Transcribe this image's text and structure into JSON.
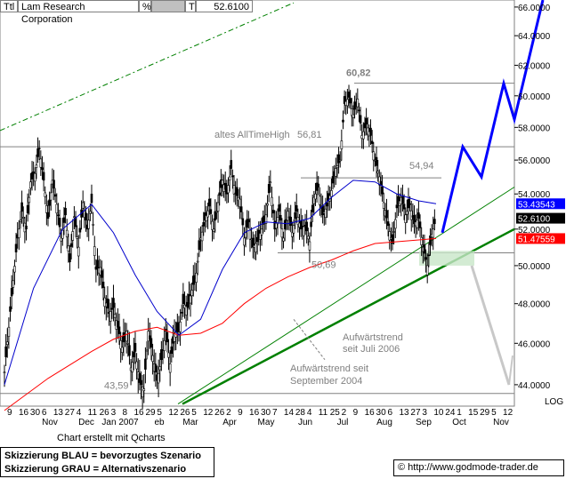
{
  "header": {
    "ticker_label": "Ttl",
    "company": "Lam Research Corporation",
    "percent_label": "%",
    "t_label": "T",
    "last_price": "52.6100"
  },
  "chart_data": {
    "type": "line",
    "y_axis_side": "right",
    "ylim": [
      43.0,
      66.5
    ],
    "y_ticks": [
      "44.0000",
      "46.0000",
      "48.0000",
      "50.0000",
      "52.0000",
      "54.0000",
      "56.0000",
      "58.0000",
      "60.0000",
      "62.0000",
      "64.0000",
      "66.0000"
    ],
    "y_tick_values": [
      44,
      46,
      48,
      50,
      52,
      54,
      56,
      58,
      60,
      62,
      64,
      66
    ],
    "scale_label": "LOG",
    "x_day_labels": [
      "9",
      "16",
      "30",
      "6",
      "13",
      "27",
      "4",
      "11",
      "26",
      "3",
      "8",
      "16",
      "29",
      "5",
      "12",
      "26",
      "5",
      "12",
      "26",
      "2",
      "9",
      "16",
      "30",
      "7",
      "14",
      "28",
      "4",
      "11",
      "25",
      "2",
      "9",
      "16",
      "30",
      "6",
      "13",
      "27",
      "3",
      "10",
      "24",
      "1",
      "15",
      "29",
      "5",
      "12"
    ],
    "x_month_labels": [
      "Nov",
      "Dec",
      "Jan 2007",
      "eb",
      "Mar",
      "Apr",
      "May",
      "Jun",
      "Jul",
      "Aug",
      "Sep",
      "Oct",
      "Nov"
    ],
    "price_tags": [
      {
        "value": 53.43543,
        "label": "53.43543",
        "color": "#0000ff",
        "text_color": "#ffffff"
      },
      {
        "value": 52.61,
        "label": "52.6100",
        "color": "#000000",
        "text_color": "#ffffff"
      },
      {
        "value": 51.47559,
        "label": "51.47559",
        "color": "#ff0000",
        "text_color": "#ffffff"
      }
    ],
    "levels": [
      {
        "value": 56.81,
        "label": "56,81",
        "note": "altes AllTimeHigh"
      },
      {
        "value": 60.82,
        "label": "60,82"
      },
      {
        "value": 54.94,
        "label": "54,94"
      },
      {
        "value": 50.69,
        "label": "50,69"
      },
      {
        "value": 43.59,
        "label": "43,59"
      }
    ],
    "annotations": [
      {
        "text": "Aufwärtstrend",
        "line2": "seit Juli 2006"
      },
      {
        "text": "Aufwärtstrend seit",
        "line2": "September 2004"
      }
    ],
    "scenarios": {
      "blue": [
        [
          0,
          51.8
        ],
        [
          1,
          56.8
        ],
        [
          2,
          55.0
        ],
        [
          3,
          60.8
        ],
        [
          4,
          58.5
        ],
        [
          5,
          66.5
        ]
      ],
      "grey": [
        [
          0,
          50.0
        ],
        [
          1,
          44.0
        ]
      ]
    },
    "price_series": [
      {
        "d": 0,
        "v": 44.6
      },
      {
        "d": 3,
        "v": 46.8
      },
      {
        "d": 6,
        "v": 49.2
      },
      {
        "d": 9,
        "v": 51.5
      },
      {
        "d": 12,
        "v": 53.0
      },
      {
        "d": 15,
        "v": 52.0
      },
      {
        "d": 18,
        "v": 54.7
      },
      {
        "d": 21,
        "v": 55.2
      },
      {
        "d": 24,
        "v": 56.7
      },
      {
        "d": 27,
        "v": 54.8
      },
      {
        "d": 30,
        "v": 52.6
      },
      {
        "d": 33,
        "v": 54.8
      },
      {
        "d": 36,
        "v": 53.4
      },
      {
        "d": 39,
        "v": 51.5
      },
      {
        "d": 42,
        "v": 52.8
      },
      {
        "d": 45,
        "v": 50.2
      },
      {
        "d": 48,
        "v": 52.7
      },
      {
        "d": 51,
        "v": 51.0
      },
      {
        "d": 54,
        "v": 53.5
      },
      {
        "d": 57,
        "v": 52.0
      },
      {
        "d": 60,
        "v": 53.5
      },
      {
        "d": 63,
        "v": 49.8
      },
      {
        "d": 66,
        "v": 49.9
      },
      {
        "d": 69,
        "v": 48.3
      },
      {
        "d": 72,
        "v": 47.5
      },
      {
        "d": 75,
        "v": 47.8
      },
      {
        "d": 78,
        "v": 46.8
      },
      {
        "d": 81,
        "v": 45.8
      },
      {
        "d": 84,
        "v": 46.6
      },
      {
        "d": 87,
        "v": 44.8
      },
      {
        "d": 90,
        "v": 45.6
      },
      {
        "d": 93,
        "v": 44.1
      },
      {
        "d": 96,
        "v": 43.8
      },
      {
        "d": 99,
        "v": 46.6
      },
      {
        "d": 102,
        "v": 45.4
      },
      {
        "d": 105,
        "v": 44.2
      },
      {
        "d": 108,
        "v": 45.2
      },
      {
        "d": 111,
        "v": 46.6
      },
      {
        "d": 114,
        "v": 45.0
      },
      {
        "d": 117,
        "v": 46.5
      },
      {
        "d": 120,
        "v": 46.6
      },
      {
        "d": 123,
        "v": 48.0
      },
      {
        "d": 126,
        "v": 47.8
      },
      {
        "d": 129,
        "v": 48.7
      },
      {
        "d": 132,
        "v": 49.6
      },
      {
        "d": 135,
        "v": 51.5
      },
      {
        "d": 138,
        "v": 52.5
      },
      {
        "d": 141,
        "v": 53.3
      },
      {
        "d": 144,
        "v": 52.0
      },
      {
        "d": 147,
        "v": 53.5
      },
      {
        "d": 150,
        "v": 54.8
      },
      {
        "d": 153,
        "v": 54.0
      },
      {
        "d": 156,
        "v": 55.5
      },
      {
        "d": 159,
        "v": 54.0
      },
      {
        "d": 162,
        "v": 53.7
      },
      {
        "d": 165,
        "v": 51.5
      },
      {
        "d": 168,
        "v": 52.4
      },
      {
        "d": 171,
        "v": 51.0
      },
      {
        "d": 174,
        "v": 51.3
      },
      {
        "d": 177,
        "v": 52.0
      },
      {
        "d": 180,
        "v": 52.8
      },
      {
        "d": 183,
        "v": 54.7
      },
      {
        "d": 186,
        "v": 52.0
      },
      {
        "d": 189,
        "v": 53.0
      },
      {
        "d": 192,
        "v": 51.5
      },
      {
        "d": 195,
        "v": 53.0
      },
      {
        "d": 198,
        "v": 51.8
      },
      {
        "d": 201,
        "v": 53.0
      },
      {
        "d": 204,
        "v": 52.0
      },
      {
        "d": 207,
        "v": 52.2
      },
      {
        "d": 210,
        "v": 51.3
      },
      {
        "d": 213,
        "v": 53.8
      },
      {
        "d": 216,
        "v": 54.4
      },
      {
        "d": 219,
        "v": 52.8
      },
      {
        "d": 222,
        "v": 53.3
      },
      {
        "d": 225,
        "v": 54.2
      },
      {
        "d": 228,
        "v": 55.5
      },
      {
        "d": 231,
        "v": 56.0
      },
      {
        "d": 234,
        "v": 59.5
      },
      {
        "d": 237,
        "v": 59.9
      },
      {
        "d": 240,
        "v": 58.8
      },
      {
        "d": 243,
        "v": 59.8
      },
      {
        "d": 246,
        "v": 57.5
      },
      {
        "d": 249,
        "v": 58.2
      },
      {
        "d": 252,
        "v": 57.5
      },
      {
        "d": 255,
        "v": 56.0
      },
      {
        "d": 258,
        "v": 55.0
      },
      {
        "d": 261,
        "v": 53.5
      },
      {
        "d": 264,
        "v": 52.2
      },
      {
        "d": 267,
        "v": 51.2
      },
      {
        "d": 270,
        "v": 53.2
      },
      {
        "d": 273,
        "v": 53.8
      },
      {
        "d": 276,
        "v": 52.8
      },
      {
        "d": 279,
        "v": 53.4
      },
      {
        "d": 282,
        "v": 52.3
      },
      {
        "d": 285,
        "v": 52.6
      },
      {
        "d": 288,
        "v": 51.0
      },
      {
        "d": 291,
        "v": 50.0
      },
      {
        "d": 294,
        "v": 51.7
      },
      {
        "d": 297,
        "v": 52.6
      }
    ],
    "ma_blue": [
      {
        "d": 0,
        "v": 44.0
      },
      {
        "d": 20,
        "v": 48.8
      },
      {
        "d": 40,
        "v": 52.0
      },
      {
        "d": 60,
        "v": 53.4
      },
      {
        "d": 75,
        "v": 51.8
      },
      {
        "d": 90,
        "v": 49.5
      },
      {
        "d": 105,
        "v": 47.6
      },
      {
        "d": 120,
        "v": 46.4
      },
      {
        "d": 135,
        "v": 47.2
      },
      {
        "d": 150,
        "v": 49.8
      },
      {
        "d": 165,
        "v": 51.8
      },
      {
        "d": 180,
        "v": 52.4
      },
      {
        "d": 195,
        "v": 52.3
      },
      {
        "d": 210,
        "v": 52.6
      },
      {
        "d": 225,
        "v": 53.8
      },
      {
        "d": 240,
        "v": 54.8
      },
      {
        "d": 255,
        "v": 54.7
      },
      {
        "d": 270,
        "v": 54.0
      },
      {
        "d": 285,
        "v": 53.6
      },
      {
        "d": 297,
        "v": 53.435
      }
    ],
    "ma_red": [
      {
        "d": 0,
        "v": 42.8
      },
      {
        "d": 30,
        "v": 44.3
      },
      {
        "d": 60,
        "v": 45.6
      },
      {
        "d": 75,
        "v": 46.2
      },
      {
        "d": 90,
        "v": 46.6
      },
      {
        "d": 105,
        "v": 46.8
      },
      {
        "d": 120,
        "v": 46.4
      },
      {
        "d": 135,
        "v": 46.5
      },
      {
        "d": 150,
        "v": 47.0
      },
      {
        "d": 165,
        "v": 48.0
      },
      {
        "d": 180,
        "v": 48.8
      },
      {
        "d": 195,
        "v": 49.4
      },
      {
        "d": 210,
        "v": 49.9
      },
      {
        "d": 225,
        "v": 50.3
      },
      {
        "d": 240,
        "v": 50.8
      },
      {
        "d": 255,
        "v": 51.2
      },
      {
        "d": 270,
        "v": 51.3
      },
      {
        "d": 285,
        "v": 51.4
      },
      {
        "d": 297,
        "v": 51.476
      }
    ]
  },
  "footer": {
    "credit": "Chart erstellt mit Qcharts",
    "legend_line1": "Skizzierung BLAU = bevorzugtes Szenario",
    "legend_line2": "Skizzierung GRAU = Alternativszenario",
    "copyright_symbol": "©",
    "source": "http://www.godmode-trader.de"
  }
}
